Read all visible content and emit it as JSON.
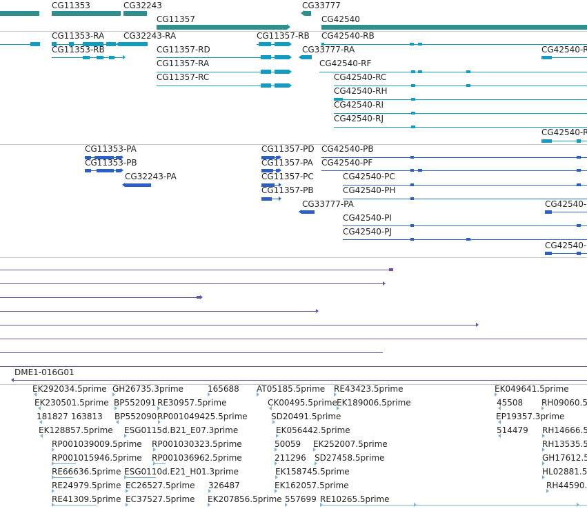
{
  "colors": {
    "gene": "#2f8f8f",
    "mrna": "#139bc1",
    "protein": "#2b5fc4",
    "cdna": "#6a4fa8",
    "est": "#7bb2d8",
    "divider": "#c8c8c8",
    "text": "#222222"
  },
  "tracks": {
    "genes": {
      "labels": [
        "CG11353",
        "CG32243",
        "CG11357",
        "CG33777",
        "CG42540"
      ]
    },
    "transcripts": {
      "labels": [
        "CG11353-RA",
        "CG11353-RB",
        "CG32243-RA",
        "CG11357-RB",
        "CG11357-RD",
        "CG11357-RA",
        "CG11357-RC",
        "CG42540-RB",
        "CG33777-RA",
        "CG42540-RF",
        "CG42540-RC",
        "CG42540-RH",
        "CG42540-RI",
        "CG42540-RJ",
        "CG42540-R",
        "CG42540-R"
      ]
    },
    "proteins": {
      "labels": [
        "CG11353-PA",
        "CG11353-PB",
        "CG32243-PA",
        "CG11357-PD",
        "CG11357-PA",
        "CG11357-PC",
        "CG11357-PB",
        "CG42540-PB",
        "CG42540-PF",
        "CG42540-PC",
        "CG42540-PH",
        "CG33777-PA",
        "CG42540-PI",
        "CG42540-PJ",
        "CG42540-",
        "CG42540-"
      ]
    },
    "cdna": {
      "labels": [
        "DME1-016G01"
      ]
    },
    "est": {
      "labels": [
        "EK292034.5prime",
        "GH26735.3prime",
        "165688",
        "AT05185.5prime",
        "RE43423.5prime",
        "EK049641.5prime",
        "EK230501.5prime",
        "BP552091",
        "RE30957.5prime",
        "CK00495.5prime",
        "EK189006.5prime",
        "45508",
        "RH09060.5",
        "181827",
        "163813",
        "BP552090",
        "RP001049425.5prime",
        "SD20491.5prime",
        "EP19357.3prime",
        "EK128857.5prime",
        "ESG0115d.B21_E07.3prime",
        "EK056442.5prime",
        "514479",
        "RH14666.5",
        "RP001039009.5prime",
        "RP001030323.5prime",
        "50059",
        "EK252007.5prime",
        "RH13535.5",
        "RP001015946.5prime",
        "RP001036962.5prime",
        "211296",
        "SD27458.5prime",
        "GH17612.5",
        "RE66636.5prime",
        "ESG0110d.E21_H01.3prime",
        "EK158745.5prime",
        "HL02881.5",
        "RE24979.5prime",
        "EC26527.5prime",
        "326487",
        "EK162057.5prime",
        "RH44590.",
        "RE41309.5prime",
        "EC37527.5prime",
        "EK207856.5prime",
        "557699",
        "RE10265.5prime"
      ]
    }
  }
}
